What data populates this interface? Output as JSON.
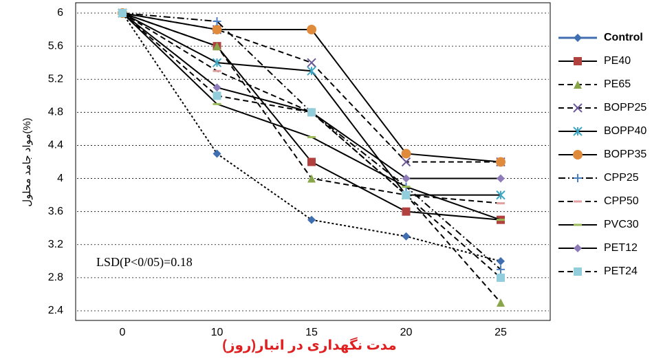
{
  "chart_data": {
    "type": "line",
    "y_label": "مواد جامد محلول(%)",
    "x_label": "مدت نگهداری در انبار(روز)",
    "annotation": "LSD(P<0/05)=0.18",
    "categories": [
      "0",
      "10",
      "15",
      "20",
      "25"
    ],
    "ylim": [
      2.4,
      6
    ],
    "yticks": [
      2.4,
      2.8,
      3.2,
      3.6,
      4,
      4.4,
      4.8,
      5.2,
      5.6,
      6
    ],
    "grid": true,
    "legend": "right",
    "series": [
      {
        "name": "Control",
        "color": "#3f6fb0",
        "marker": "diamond",
        "dash": "dotted",
        "values": [
          6,
          4.3,
          3.5,
          3.3,
          3.0
        ]
      },
      {
        "name": "PE40",
        "color": "#b0413e",
        "marker": "square",
        "dash": "solid",
        "values": [
          6,
          5.6,
          4.2,
          3.6,
          3.5
        ]
      },
      {
        "name": "PE65",
        "color": "#8aa64a",
        "marker": "triangle",
        "dash": "dashed",
        "values": [
          6,
          5.6,
          4.0,
          3.8,
          2.5
        ]
      },
      {
        "name": "BOPP25",
        "color": "#6e5a9a",
        "marker": "x",
        "dash": "dashed",
        "values": [
          6,
          5.8,
          5.4,
          4.2,
          4.2
        ]
      },
      {
        "name": "BOPP40",
        "color": "#3fa6c4",
        "marker": "star",
        "dash": "solid",
        "values": [
          6,
          5.4,
          5.3,
          3.8,
          3.8
        ]
      },
      {
        "name": "BOPP35",
        "color": "#e08a3c",
        "marker": "circle",
        "dash": "solid",
        "values": [
          6,
          5.8,
          5.8,
          4.3,
          4.2
        ]
      },
      {
        "name": "CPP25",
        "color": "#4a7fc4",
        "marker": "plus",
        "dash": "dashdot",
        "values": [
          6,
          5.9,
          4.8,
          3.9,
          2.9
        ]
      },
      {
        "name": "CPP50",
        "color": "#e0a0a0",
        "marker": "dash",
        "dash": "dashed",
        "values": [
          6,
          5.3,
          4.8,
          3.8,
          3.7
        ]
      },
      {
        "name": "PVC30",
        "color": "#9bbb59",
        "marker": "dash",
        "dash": "solid",
        "values": [
          6,
          4.9,
          4.5,
          3.9,
          3.5
        ]
      },
      {
        "name": "PET12",
        "color": "#8e7cb8",
        "marker": "diamond",
        "dash": "solid",
        "values": [
          6,
          5.1,
          4.8,
          4.0,
          4.0
        ]
      },
      {
        "name": "PET24",
        "color": "#92cddc",
        "marker": "square",
        "dash": "dashed",
        "values": [
          6,
          5.0,
          4.8,
          3.8,
          2.8
        ]
      }
    ]
  }
}
